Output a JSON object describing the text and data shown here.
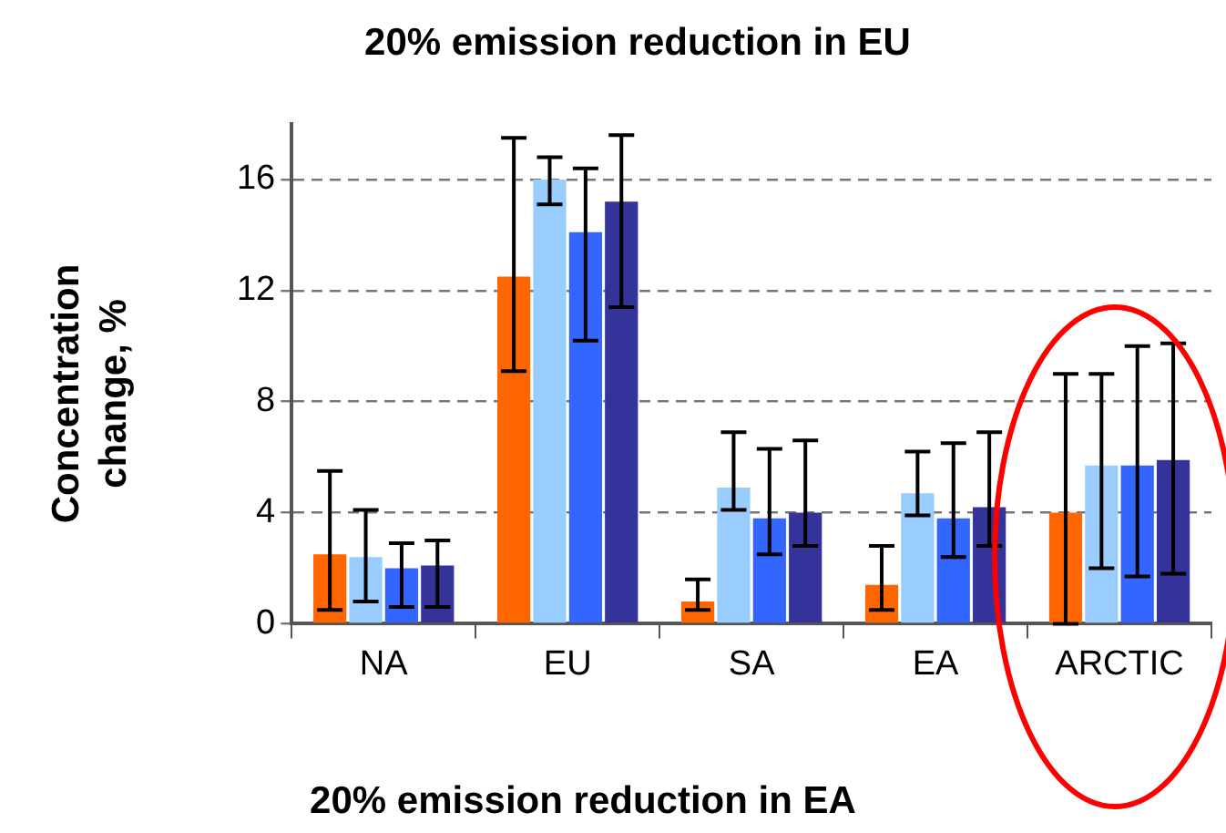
{
  "chart_data": {
    "type": "bar",
    "title": "20% emission reduction in EU",
    "ylabel": "Concentration change, %",
    "categories": [
      "NA",
      "EU",
      "SA",
      "EA",
      "ARCTIC"
    ],
    "series": [
      {
        "color": "#ff6600",
        "values": [
          2.5,
          12.5,
          0.8,
          1.4,
          4.0
        ],
        "errors": [
          [
            0.5,
            5.5
          ],
          [
            9.1,
            17.5
          ],
          [
            0.5,
            1.6
          ],
          [
            0.5,
            2.8
          ],
          [
            0,
            9.0
          ]
        ]
      },
      {
        "color": "#99ccff",
        "values": [
          2.4,
          16.0,
          4.9,
          4.7,
          5.7
        ],
        "errors": [
          [
            0.8,
            4.1
          ],
          [
            15.1,
            16.8
          ],
          [
            4.1,
            6.9
          ],
          [
            3.9,
            6.2
          ],
          [
            2.0,
            9.0
          ]
        ]
      },
      {
        "color": "#3366ff",
        "values": [
          2.0,
          14.1,
          3.8,
          3.8,
          5.7
        ],
        "errors": [
          [
            0.6,
            2.9
          ],
          [
            10.2,
            16.4
          ],
          [
            2.5,
            6.3
          ],
          [
            2.4,
            6.5
          ],
          [
            1.7,
            10.0
          ]
        ]
      },
      {
        "color": "#333399",
        "values": [
          2.1,
          15.2,
          4.0,
          4.2,
          5.9
        ],
        "errors": [
          [
            0.6,
            3.0
          ],
          [
            11.4,
            17.6
          ],
          [
            2.8,
            6.6
          ],
          [
            2.8,
            6.9
          ],
          [
            1.8,
            10.1
          ]
        ]
      }
    ],
    "ylim": [
      0,
      18
    ],
    "yticks": [
      0,
      4,
      8,
      12,
      16
    ],
    "grid": "y",
    "line_style": "dashed",
    "legend": false,
    "annotations": [
      "20% emission reduction in EA"
    ]
  }
}
